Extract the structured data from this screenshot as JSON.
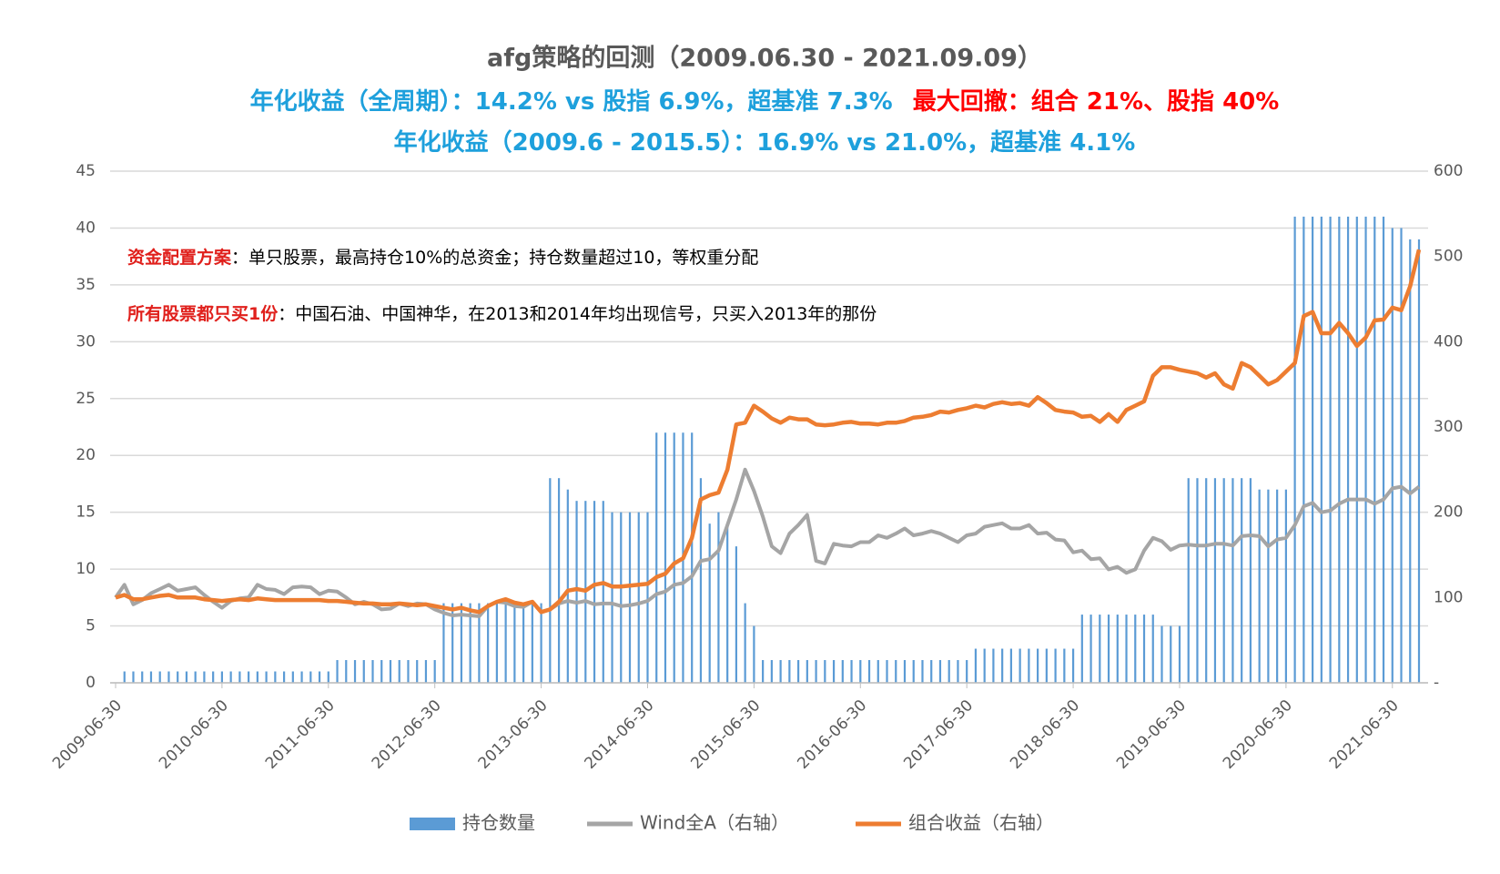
{
  "chart_data": {
    "type": "combo",
    "title": "afg策略的回测（2009.06.30 - 2021.09.09）",
    "subtitle_lines": [
      [
        {
          "text": "年化收益（全周期）：14.2% vs 股指 6.9%，超基准 7.3%",
          "color": "#1ea0dc"
        },
        {
          "text": "最大回撤：组合 21%、股指   40%",
          "color": "#ff0000"
        }
      ],
      [
        {
          "text": "年化收益（2009.6 - 2015.5）：16.9% vs 21.0%，超基准 4.1%",
          "color": "#1ea0dc"
        }
      ]
    ],
    "annotations": [
      [
        {
          "text": "资金配置方案",
          "color": "#e0201c"
        },
        {
          "text": "：单只股票，最高持仓10%的总资金；持仓数量超过10，等权重分配",
          "color": "#000000"
        }
      ],
      [
        {
          "text": "所有股票都只买1份",
          "color": "#e0201c"
        },
        {
          "text": "：中国石油、中国神华，在2013和2014年均出现信号，只买入2013年的那份",
          "color": "#000000"
        }
      ]
    ],
    "categories": [
      "2009-06-30",
      null,
      null,
      null,
      null,
      null,
      null,
      null,
      null,
      null,
      null,
      null,
      "2010-06-30",
      null,
      null,
      null,
      null,
      null,
      null,
      null,
      null,
      null,
      null,
      null,
      "2011-06-30",
      null,
      null,
      null,
      null,
      null,
      null,
      null,
      null,
      null,
      null,
      null,
      "2012-06-30",
      null,
      null,
      null,
      null,
      null,
      null,
      null,
      null,
      null,
      null,
      null,
      "2013-06-30",
      null,
      null,
      null,
      null,
      null,
      null,
      null,
      null,
      null,
      null,
      null,
      "2014-06-30",
      null,
      null,
      null,
      null,
      null,
      null,
      null,
      null,
      null,
      null,
      null,
      "2015-06-30",
      null,
      null,
      null,
      null,
      null,
      null,
      null,
      null,
      null,
      null,
      null,
      "2016-06-30",
      null,
      null,
      null,
      null,
      null,
      null,
      null,
      null,
      null,
      null,
      null,
      "2017-06-30",
      null,
      null,
      null,
      null,
      null,
      null,
      null,
      null,
      null,
      null,
      null,
      "2018-06-30",
      null,
      null,
      null,
      null,
      null,
      null,
      null,
      null,
      null,
      null,
      null,
      "2019-06-30",
      null,
      null,
      null,
      null,
      null,
      null,
      null,
      null,
      null,
      null,
      null,
      "2020-06-30",
      null,
      null,
      null,
      null,
      null,
      null,
      null,
      null,
      null,
      null,
      null,
      "2021-06-30",
      null,
      null,
      null
    ],
    "series": [
      {
        "name": "持仓数量",
        "type": "bar",
        "axis": "y",
        "color": "#5b9bd5",
        "values": [
          0,
          1,
          1,
          1,
          1,
          1,
          1,
          1,
          1,
          1,
          1,
          1,
          1,
          1,
          1,
          1,
          1,
          1,
          1,
          1,
          1,
          1,
          1,
          1,
          1,
          2,
          2,
          2,
          2,
          2,
          2,
          2,
          2,
          2,
          2,
          2,
          2,
          7,
          7,
          7,
          7,
          7,
          7,
          7,
          7,
          7,
          7,
          7,
          7,
          18,
          18,
          17,
          16,
          16,
          16,
          16,
          15,
          15,
          15,
          15,
          15,
          22,
          22,
          22,
          22,
          22,
          18,
          14,
          15,
          14,
          12,
          7,
          5,
          2,
          2,
          2,
          2,
          2,
          2,
          2,
          2,
          2,
          2,
          2,
          2,
          2,
          2,
          2,
          2,
          2,
          2,
          2,
          2,
          2,
          2,
          2,
          2,
          3,
          3,
          3,
          3,
          3,
          3,
          3,
          3,
          3,
          3,
          3,
          3,
          6,
          6,
          6,
          6,
          6,
          6,
          6,
          6,
          6,
          5,
          5,
          5,
          18,
          18,
          18,
          18,
          18,
          18,
          18,
          18,
          17,
          17,
          17,
          17,
          41,
          41,
          41,
          41,
          41,
          41,
          41,
          41,
          41,
          41,
          41,
          40,
          40,
          39,
          39
        ]
      },
      {
        "name": "Wind全A（右轴）",
        "type": "line",
        "axis": "y2",
        "color": "#a5a5a5",
        "values": [
          100,
          115,
          92,
          97,
          105,
          110,
          115,
          108,
          110,
          112,
          103,
          95,
          88,
          96,
          99,
          100,
          115,
          110,
          109,
          104,
          112,
          113,
          112,
          104,
          108,
          107,
          100,
          92,
          95,
          92,
          86,
          87,
          93,
          90,
          93,
          92,
          86,
          82,
          79,
          80,
          79,
          78,
          90,
          95,
          94,
          90,
          89,
          95,
          83,
          86,
          93,
          96,
          94,
          96,
          92,
          93,
          93,
          90,
          91,
          93,
          96,
          104,
          107,
          115,
          117,
          125,
          143,
          145,
          155,
          185,
          215,
          250,
          225,
          195,
          160,
          152,
          175,
          185,
          197,
          143,
          140,
          163,
          161,
          160,
          165,
          165,
          173,
          170,
          175,
          181,
          173,
          175,
          178,
          175,
          170,
          165,
          173,
          175,
          183,
          185,
          187,
          181,
          181,
          185,
          175,
          176,
          168,
          167,
          153,
          155,
          145,
          146,
          133,
          136,
          129,
          133,
          155,
          170,
          166,
          156,
          161,
          162,
          161,
          161,
          163,
          163,
          161,
          172,
          173,
          172,
          160,
          168,
          170,
          185,
          207,
          211,
          200,
          202,
          210,
          215,
          215,
          215,
          210,
          215,
          228,
          230,
          222,
          230
        ]
      },
      {
        "name": "组合收益（右轴）",
        "type": "line",
        "axis": "y2",
        "color": "#ed7d31",
        "values": [
          100,
          103,
          98,
          98,
          100,
          102,
          103,
          100,
          100,
          100,
          98,
          97,
          96,
          97,
          98,
          97,
          99,
          98,
          97,
          97,
          97,
          97,
          97,
          97,
          96,
          96,
          95,
          94,
          93,
          93,
          92,
          92,
          93,
          92,
          91,
          92,
          90,
          88,
          86,
          88,
          85,
          83,
          90,
          95,
          98,
          94,
          92,
          95,
          83,
          86,
          95,
          108,
          110,
          108,
          115,
          117,
          113,
          113,
          114,
          115,
          116,
          124,
          128,
          140,
          146,
          170,
          215,
          220,
          223,
          250,
          303,
          305,
          325,
          318,
          310,
          305,
          311,
          309,
          309,
          303,
          302,
          303,
          305,
          306,
          304,
          304,
          303,
          305,
          305,
          307,
          311,
          312,
          314,
          318,
          317,
          320,
          322,
          325,
          323,
          327,
          329,
          327,
          328,
          325,
          335,
          328,
          320,
          318,
          317,
          312,
          313,
          306,
          315,
          306,
          320,
          325,
          330,
          360,
          370,
          370,
          367,
          365,
          363,
          358,
          363,
          350,
          345,
          375,
          370,
          360,
          350,
          355,
          365,
          375,
          430,
          435,
          410,
          410,
          422,
          410,
          395,
          405,
          425,
          426,
          440,
          437,
          465,
          508
        ]
      }
    ],
    "ylim": [
      0,
      45
    ],
    "yticks": [
      0,
      5,
      10,
      15,
      20,
      25,
      30,
      35,
      40,
      45
    ],
    "y2lim": [
      0,
      600
    ],
    "y2ticks": [
      {
        "value": 0,
        "label": "-"
      },
      100,
      200,
      300,
      400,
      500,
      600
    ],
    "grid": true,
    "legend": "bottom"
  }
}
